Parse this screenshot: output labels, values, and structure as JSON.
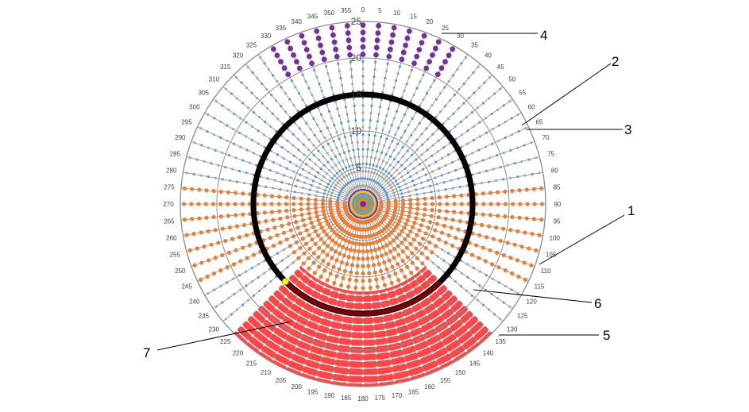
{
  "chart_data": {
    "type": "polar-scatter",
    "angle_ticks": [
      "0",
      "5",
      "10",
      "15",
      "20",
      "25",
      "30",
      "35",
      "40",
      "45",
      "50",
      "55",
      "60",
      "65",
      "70",
      "75",
      "80",
      "85",
      "90",
      "95",
      "100",
      "105",
      "110",
      "115",
      "120",
      "125",
      "130",
      "135",
      "140",
      "145",
      "150",
      "155",
      "160",
      "165",
      "170",
      "175",
      "180",
      "185",
      "190",
      "195",
      "200",
      "205",
      "210",
      "215",
      "220",
      "225",
      "230",
      "235",
      "240",
      "245",
      "250",
      "255",
      "260",
      "265",
      "270",
      "275",
      "280",
      "285",
      "290",
      "295",
      "300",
      "305",
      "310",
      "315",
      "320",
      "325",
      "330",
      "335",
      "340",
      "345",
      "350",
      "355"
    ],
    "radial_ticks": [
      "5",
      "10",
      "15",
      "20",
      "25"
    ],
    "radial_max": 25,
    "grid": true,
    "reference_circle_radius": 15,
    "highlight_point": {
      "angle": 225,
      "radius": 15
    },
    "regions": [
      {
        "color": "#7030a0",
        "angle_from": 330,
        "angle_to": 30,
        "radius_from": 20,
        "radius_to": 25
      },
      {
        "color": "#ed7d31",
        "angle_from": 85,
        "angle_to": 115,
        "radius_from": 0,
        "radius_to": 25
      },
      {
        "color": "#ed7d31",
        "angle_from": 245,
        "angle_to": 275,
        "radius_from": 0,
        "radius_to": 25
      },
      {
        "color": "#ed7d31",
        "angle_from": 115,
        "angle_to": 245,
        "radius_from": 0,
        "radius_to": 12
      },
      {
        "color": "#ff3b3b",
        "angle_from": 135,
        "angle_to": 225,
        "radius_from": 12,
        "radius_to": 25
      }
    ],
    "colors": {
      "default_points": "#5b9bd5",
      "default_points_alt": "#a5a5a5",
      "reference_circle": "#000000",
      "highlight_point": "#ffff00"
    }
  },
  "callouts": [
    {
      "label": "1"
    },
    {
      "label": "2"
    },
    {
      "label": "3"
    },
    {
      "label": "4"
    },
    {
      "label": "5"
    },
    {
      "label": "6"
    },
    {
      "label": "7"
    }
  ]
}
